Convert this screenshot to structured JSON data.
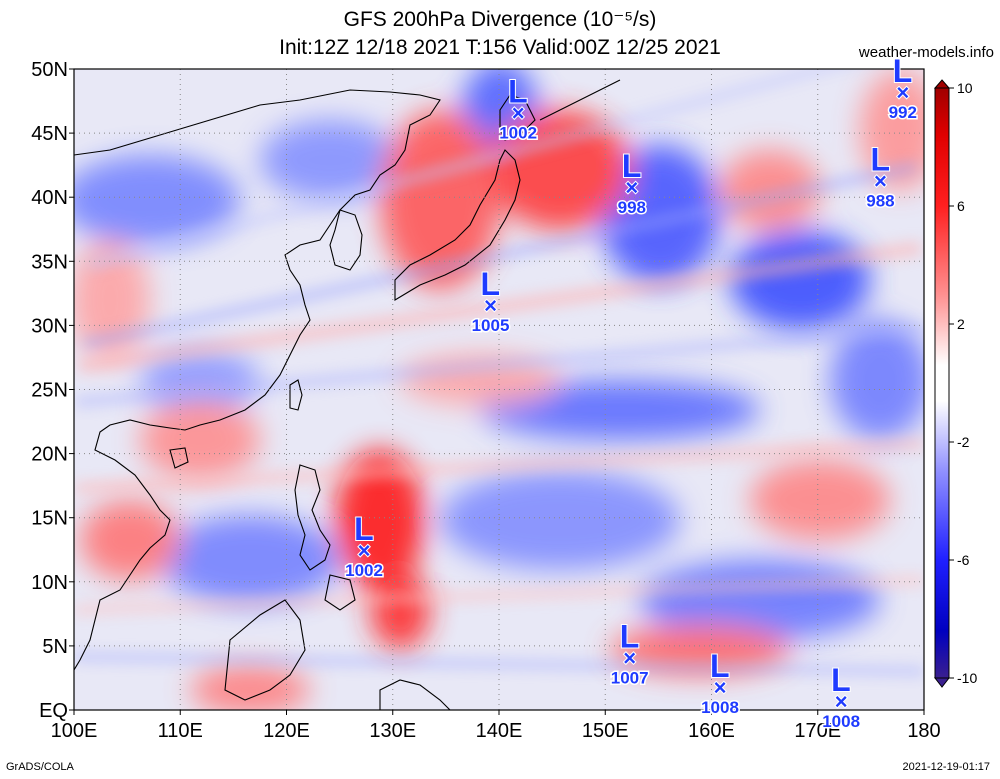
{
  "header": {
    "title": "GFS 200hPa Divergence (10⁻⁵/s)",
    "subtitle": "Init:12Z 12/18 2021 T:156 Valid:00Z 12/25 2021",
    "site": "weather-models.info"
  },
  "footer": {
    "left": "GrADS/COLA",
    "right": "2021-12-19-01:17"
  },
  "axes": {
    "lat_labels": [
      "50N",
      "45N",
      "40N",
      "35N",
      "30N",
      "25N",
      "20N",
      "15N",
      "10N",
      "5N",
      "EQ"
    ],
    "lat_values": [
      50,
      45,
      40,
      35,
      30,
      25,
      20,
      15,
      10,
      5,
      0
    ],
    "lon_labels": [
      "100E",
      "110E",
      "120E",
      "130E",
      "140E",
      "150E",
      "160E",
      "170E",
      "180"
    ],
    "lon_values": [
      100,
      110,
      120,
      130,
      140,
      150,
      160,
      170,
      180
    ],
    "lat_range": [
      0,
      50
    ],
    "lon_range": [
      100,
      180
    ],
    "grid": true
  },
  "colorbar": {
    "labels": [
      "10",
      "6",
      "2",
      "-2",
      "-6",
      "-10"
    ],
    "values": [
      10,
      6,
      2,
      -2,
      -6,
      -10
    ],
    "colors": {
      "max": "#ff0000",
      "pos": "#ff8080",
      "zero": "#ffffff",
      "neg": "#8080ff",
      "min": "#0000e0",
      "deep_min": "#3a1f8f"
    }
  },
  "low_symbol": "L",
  "center_symbol": "×",
  "lows": [
    {
      "lon": 141.8,
      "lat": 46.6,
      "pressure": "1002"
    },
    {
      "lon": 152.5,
      "lat": 40.8,
      "pressure": "998"
    },
    {
      "lon": 175.9,
      "lat": 41.3,
      "pressure": "988"
    },
    {
      "lon": 178.0,
      "lat": 48.2,
      "pressure": "992"
    },
    {
      "lon": 139.2,
      "lat": 31.6,
      "pressure": "1005"
    },
    {
      "lon": 127.3,
      "lat": 12.5,
      "pressure": "1002"
    },
    {
      "lon": 152.3,
      "lat": 4.1,
      "pressure": "1007"
    },
    {
      "lon": 160.8,
      "lat": 1.8,
      "pressure": "1008"
    },
    {
      "lon": 172.2,
      "lat": 0.7,
      "pressure": "1008"
    }
  ]
}
